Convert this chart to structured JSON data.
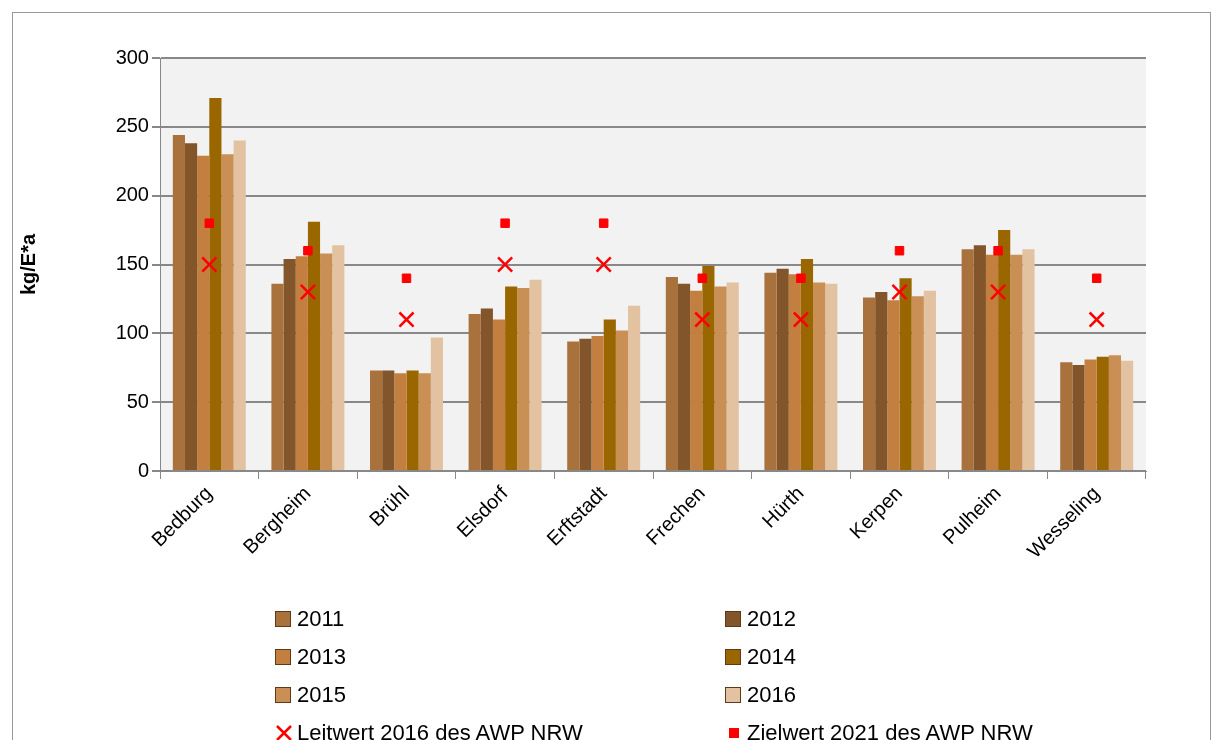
{
  "chart_data": {
    "type": "bar",
    "ylabel": "kg/E*a",
    "categories": [
      "Bedburg",
      "Bergheim",
      "Brühl",
      "Elsdorf",
      "Erftstadt",
      "Frechen",
      "Hürth",
      "Kerpen",
      "Pulheim",
      "Wesseling"
    ],
    "series": [
      {
        "name": "2011",
        "color": "#a9713b",
        "values": [
          244,
          136,
          73,
          114,
          94,
          141,
          144,
          126,
          161,
          79
        ]
      },
      {
        "name": "2012",
        "color": "#82552a",
        "values": [
          238,
          154,
          73,
          118,
          96,
          136,
          147,
          130,
          164,
          77
        ]
      },
      {
        "name": "2013",
        "color": "#c27f40",
        "values": [
          229,
          156,
          71,
          110,
          98,
          131,
          143,
          124,
          157,
          81
        ]
      },
      {
        "name": "2014",
        "color": "#996600",
        "values": [
          271,
          181,
          73,
          134,
          110,
          149,
          154,
          140,
          175,
          83
        ]
      },
      {
        "name": "2015",
        "color": "#c98f55",
        "values": [
          230,
          158,
          71,
          133,
          102,
          134,
          137,
          127,
          157,
          84
        ]
      },
      {
        "name": "2016",
        "color": "#e2c2a1",
        "values": [
          240,
          164,
          97,
          139,
          120,
          137,
          136,
          131,
          161,
          80
        ]
      },
      {
        "name": "Leitwert 2016 des AWP NRW",
        "type": "scatter",
        "marker": "cross",
        "color": "#ff0000",
        "values": [
          150,
          130,
          110,
          150,
          150,
          110,
          110,
          130,
          130,
          110
        ]
      },
      {
        "name": "Zielwert 2021 des AWP NRW",
        "type": "scatter",
        "marker": "square",
        "color": "#ff0000",
        "values": [
          180,
          160,
          140,
          180,
          180,
          140,
          140,
          160,
          160,
          140
        ]
      }
    ],
    "ylim": [
      0,
      300
    ],
    "yticks": [
      0,
      50,
      100,
      150,
      200,
      250,
      300
    ],
    "grid": "y",
    "legend": "bottom"
  }
}
